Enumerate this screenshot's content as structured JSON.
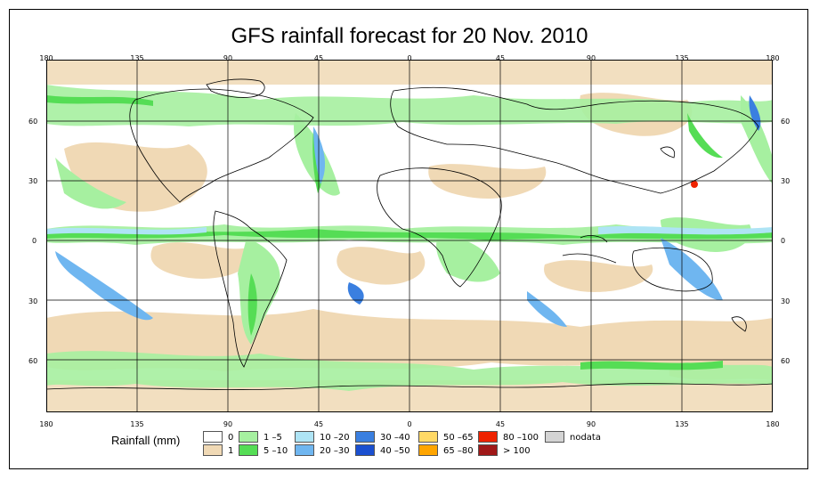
{
  "title": "GFS rainfall forecast for 20 Nov. 2010",
  "axes": {
    "top_ticks": [
      "180",
      "135",
      "90",
      "45",
      "0",
      "45",
      "90",
      "135",
      "180"
    ],
    "bottom_ticks": [
      "180",
      "135",
      "90",
      "45",
      "0",
      "45",
      "90",
      "135",
      "180"
    ],
    "left_ticks": [
      "60",
      "30",
      "0",
      "30",
      "60"
    ],
    "right_ticks": [
      "60",
      "30",
      "0",
      "30",
      "60"
    ]
  },
  "legend": {
    "title": "Rainfall (mm)",
    "items": [
      {
        "label": "0",
        "color": "#ffffff"
      },
      {
        "label": "1",
        "color": "#f0d9b5"
      },
      {
        "label": "1 –5",
        "color": "#a6f0a0"
      },
      {
        "label": "5 –10",
        "color": "#55dd55"
      },
      {
        "label": "10 –20",
        "color": "#aee4f5"
      },
      {
        "label": "20 –30",
        "color": "#6fb6f0"
      },
      {
        "label": "30 –40",
        "color": "#3a7fe0"
      },
      {
        "label": "40 –50",
        "color": "#1a4fd0"
      },
      {
        "label": "50 –65",
        "color": "#ffd966"
      },
      {
        "label": "65 –80",
        "color": "#ffa500"
      },
      {
        "label": "80 –100",
        "color": "#ee2200"
      },
      {
        "label": "> 100",
        "color": "#a01818"
      },
      {
        "label": "nodata",
        "color": "#d4d4d4"
      }
    ]
  }
}
